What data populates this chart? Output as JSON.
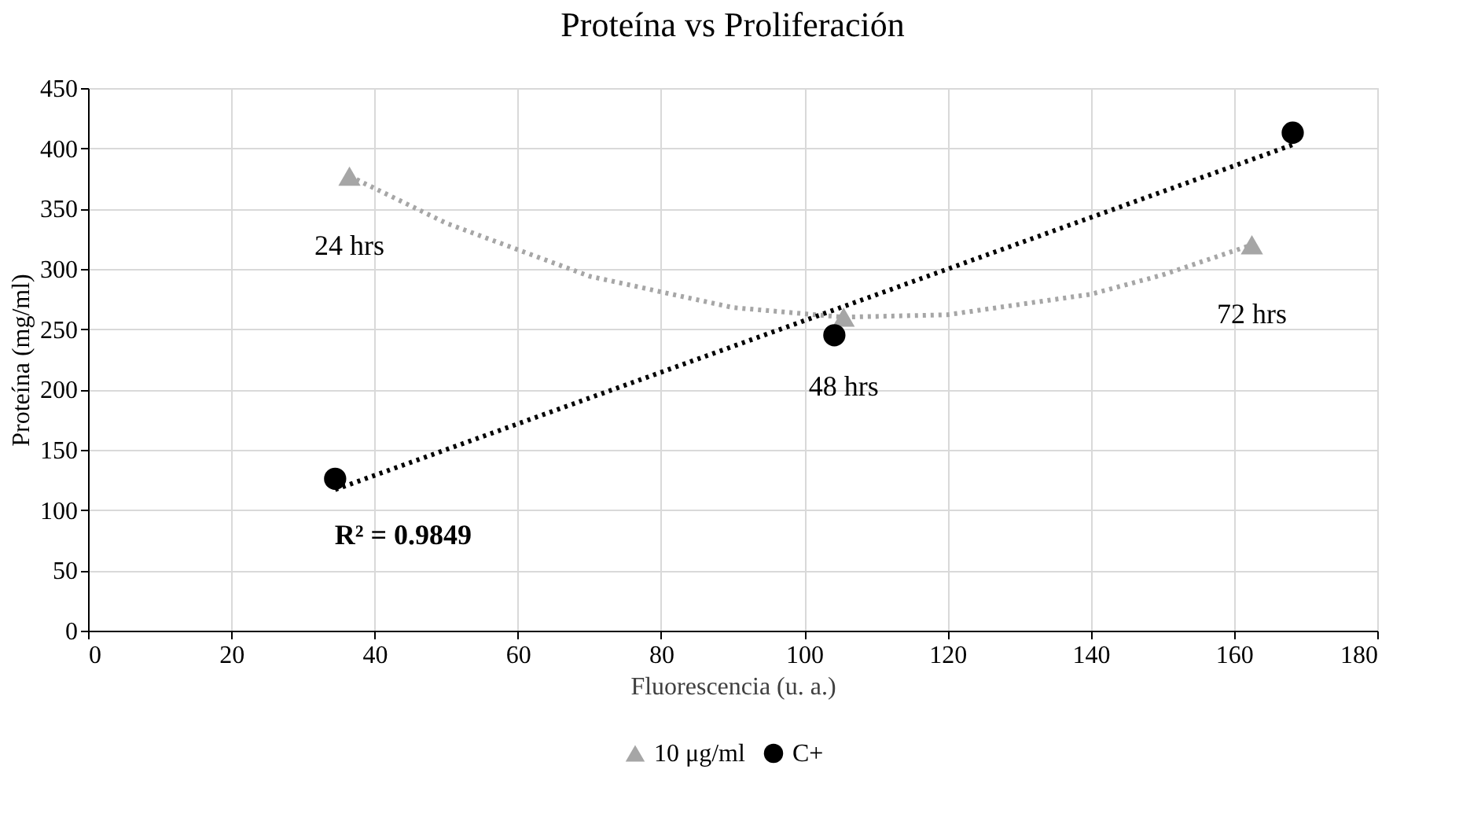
{
  "chart_data": {
    "type": "scatter",
    "title": "Proteína vs Proliferación",
    "xlabel": "Fluorescencia (u. a.)",
    "ylabel": "Proteína (mg/ml)",
    "xlim": [
      0,
      180
    ],
    "xticks": [
      0,
      20,
      40,
      60,
      80,
      100,
      120,
      140,
      160,
      180
    ],
    "ylim": [
      0,
      450
    ],
    "yticks": [
      0,
      50,
      100,
      150,
      200,
      250,
      300,
      350,
      400,
      450
    ],
    "grid": true,
    "legend": "bottom",
    "series": [
      {
        "name": "10 μg/ml",
        "marker": "triangle",
        "color": "#a6a6a6",
        "x": [
          36.5,
          105.5,
          162.5
        ],
        "values": [
          377,
          260,
          320
        ]
      },
      {
        "name": "C+",
        "marker": "circle",
        "color": "#000000",
        "x": [
          34.5,
          104.2,
          168.2
        ],
        "values": [
          126,
          245,
          413
        ]
      },
      {
        "type": "line",
        "line_style": "dotted",
        "color": "#a6a6a6",
        "x": [
          36.5,
          50,
          70,
          90,
          105.5,
          120,
          140,
          150,
          162.5
        ],
        "values": [
          377,
          338,
          294,
          268,
          260,
          262,
          279,
          295,
          320
        ]
      },
      {
        "type": "line",
        "line_style": "dotted",
        "color": "#000000",
        "x": [
          34.5,
          168.2
        ],
        "values": [
          117,
          403
        ]
      }
    ],
    "annotations": [
      {
        "text": "24 hrs",
        "x": 36.5,
        "y": 377
      },
      {
        "text": "48 hrs",
        "x": 105.5,
        "y": 260
      },
      {
        "text": "72 hrs",
        "x": 162.5,
        "y": 320
      },
      {
        "text": "R² = 0.9849",
        "x": 44,
        "y": 137
      }
    ]
  }
}
